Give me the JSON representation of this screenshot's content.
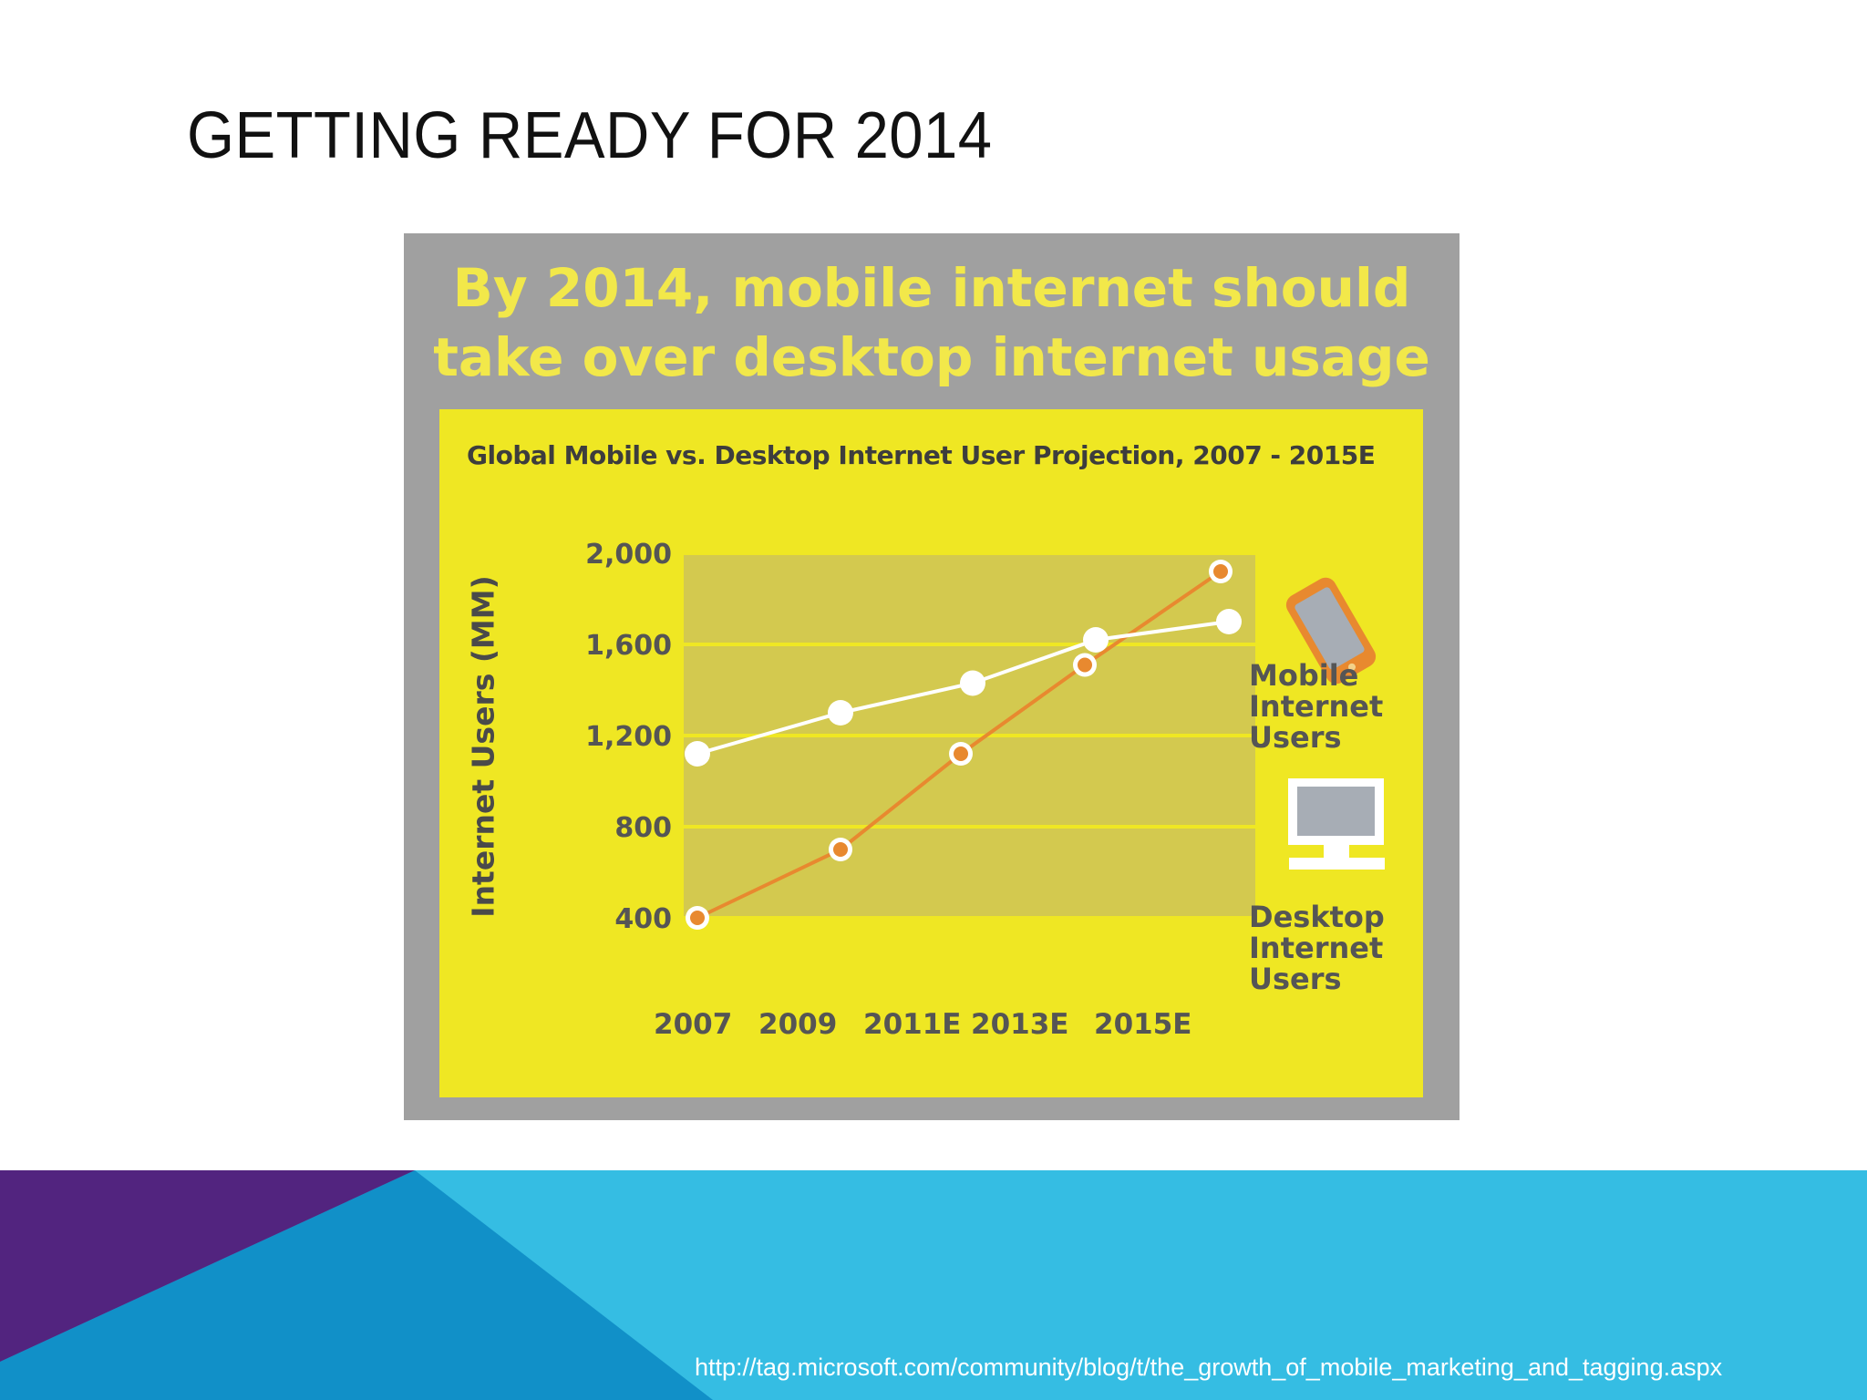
{
  "slide": {
    "title": "GETTING READY FOR 2014",
    "source_url": "http://tag.microsoft.com/community/blog/t/the_growth_of_mobile_marketing_and_tagging.aspx"
  },
  "infographic": {
    "headline_line1": "By 2014, mobile internet should",
    "headline_line2": "take over desktop internet usage"
  },
  "colors": {
    "mobile_series": "#e8892f",
    "desktop_series": "#ffffff",
    "panel": "#efe723",
    "plot_area": "#d3c94f",
    "frame": "#a0a0a0",
    "footer_purple": "#52247f",
    "footer_blue": "#1190c8",
    "footer_cyan": "#35bde3"
  },
  "chart_data": {
    "type": "line",
    "title": "Global Mobile vs. Desktop Internet User Projection, 2007 - 2015E",
    "ylabel": "Internet Users (MM)",
    "xlabel": "",
    "categories": [
      "2007",
      "2009",
      "2011E",
      "2013E",
      "2015E"
    ],
    "yticks": [
      "2,000",
      "1,600",
      "1,200",
      "800",
      "400"
    ],
    "ylim": [
      0,
      2000
    ],
    "grid": true,
    "series": [
      {
        "name": "Mobile Internet Users",
        "icon": "mobile-phone-icon",
        "values": [
          400,
          700,
          1120,
          1510,
          1920
        ]
      },
      {
        "name": "Desktop Internet Users",
        "icon": "desktop-computer-icon",
        "values": [
          1120,
          1300,
          1430,
          1620,
          1700
        ]
      }
    ],
    "legend_position": "right"
  }
}
